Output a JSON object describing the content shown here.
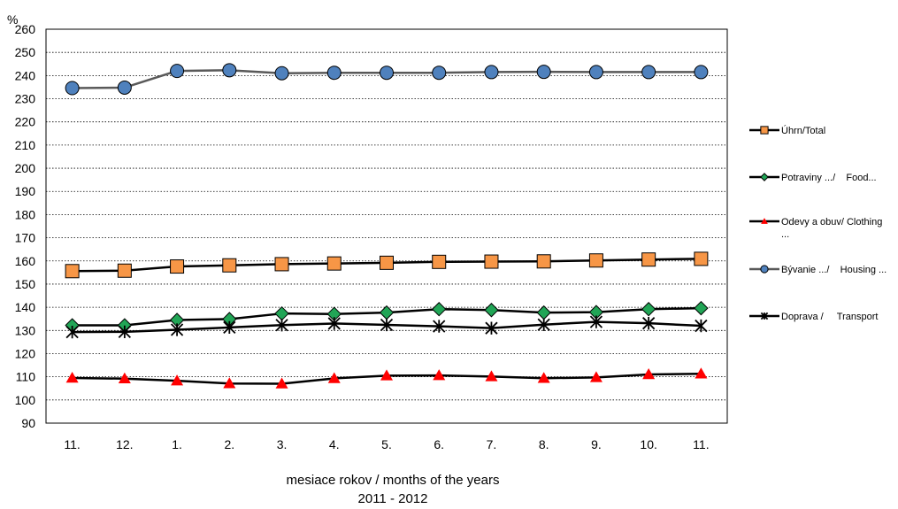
{
  "chart_data": {
    "type": "line",
    "unit_label": "%",
    "xlabel_line1": "mesiace rokov / months of the years",
    "xlabel_line2": "2011 - 2012",
    "categories": [
      "11.",
      "12.",
      "1.",
      "2.",
      "3.",
      "4.",
      "5.",
      "6.",
      "7.",
      "8.",
      "9.",
      "10.",
      "11."
    ],
    "ylim": [
      90,
      260
    ],
    "ytick_step": 10,
    "grid": "horizontal dotted",
    "legend_placement": "right",
    "series": [
      {
        "name": "Úhrn/Total",
        "marker": "square",
        "color": "#F79646",
        "values": [
          155.6,
          155.8,
          157.6,
          158.1,
          158.6,
          158.9,
          159.2,
          159.6,
          159.7,
          159.8,
          160.2,
          160.6,
          160.9
        ]
      },
      {
        "name": "Potraviny .../    Food...",
        "marker": "diamond",
        "color": "#21A556",
        "values": [
          132.2,
          132.2,
          134.5,
          134.9,
          137.3,
          137.1,
          137.7,
          139.2,
          138.8,
          137.7,
          137.9,
          139.2,
          139.6
        ]
      },
      {
        "name": "Odevy a obuv/ Clothing\n...",
        "marker": "triangle",
        "color": "#FF0000",
        "values": [
          109.5,
          109.2,
          108.3,
          107.1,
          107.0,
          109.3,
          110.5,
          110.6,
          110.1,
          109.4,
          109.7,
          111.0,
          111.3
        ]
      },
      {
        "name": "Bývanie .../    Housing ...",
        "marker": "circle",
        "color": "#4F81BD",
        "line_color": "#595959",
        "values": [
          234.6,
          234.8,
          242.0,
          242.3,
          241.0,
          241.2,
          241.2,
          241.2,
          241.5,
          241.6,
          241.5,
          241.5,
          241.5
        ]
      },
      {
        "name": "Doprava /     Transport",
        "marker": "x-star",
        "color": "#000000",
        "values": [
          129.3,
          129.4,
          130.3,
          131.3,
          132.3,
          133.0,
          132.4,
          131.8,
          131.0,
          132.5,
          133.7,
          133.1,
          132.0
        ]
      }
    ]
  }
}
